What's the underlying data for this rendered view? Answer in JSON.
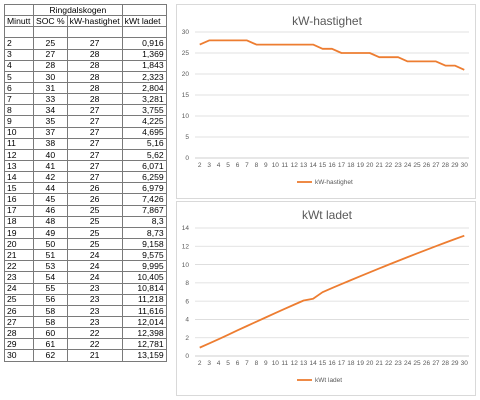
{
  "table": {
    "title": "Ringdalskogen",
    "headers": [
      "Minutt",
      "SOC %",
      "kW-hastighet",
      "kWt ladet"
    ],
    "rows": [
      [
        "2",
        "25",
        "27",
        "0,916"
      ],
      [
        "3",
        "27",
        "28",
        "1,369"
      ],
      [
        "4",
        "28",
        "28",
        "1,843"
      ],
      [
        "5",
        "30",
        "28",
        "2,323"
      ],
      [
        "6",
        "31",
        "28",
        "2,804"
      ],
      [
        "7",
        "33",
        "28",
        "3,281"
      ],
      [
        "8",
        "34",
        "27",
        "3,755"
      ],
      [
        "9",
        "35",
        "27",
        "4,225"
      ],
      [
        "10",
        "37",
        "27",
        "4,695"
      ],
      [
        "11",
        "38",
        "27",
        "5,16"
      ],
      [
        "12",
        "40",
        "27",
        "5,62"
      ],
      [
        "13",
        "41",
        "27",
        "6,071"
      ],
      [
        "14",
        "42",
        "27",
        "6,259"
      ],
      [
        "15",
        "44",
        "26",
        "6,979"
      ],
      [
        "16",
        "45",
        "26",
        "7,426"
      ],
      [
        "17",
        "46",
        "25",
        "7,867"
      ],
      [
        "18",
        "48",
        "25",
        "8,3"
      ],
      [
        "19",
        "49",
        "25",
        "8,73"
      ],
      [
        "20",
        "50",
        "25",
        "9,158"
      ],
      [
        "21",
        "51",
        "24",
        "9,575"
      ],
      [
        "22",
        "53",
        "24",
        "9,995"
      ],
      [
        "23",
        "54",
        "24",
        "10,405"
      ],
      [
        "24",
        "55",
        "23",
        "10,814"
      ],
      [
        "25",
        "56",
        "23",
        "11,218"
      ],
      [
        "26",
        "58",
        "23",
        "11,616"
      ],
      [
        "27",
        "58",
        "23",
        "12,014"
      ],
      [
        "28",
        "60",
        "22",
        "12,398"
      ],
      [
        "29",
        "61",
        "22",
        "12,781"
      ],
      [
        "30",
        "62",
        "21",
        "13,159"
      ]
    ]
  },
  "chart_data": [
    {
      "type": "line",
      "title": "kW-hastighet",
      "x": [
        2,
        3,
        4,
        5,
        6,
        7,
        8,
        9,
        10,
        11,
        12,
        13,
        14,
        15,
        16,
        17,
        18,
        19,
        20,
        21,
        22,
        23,
        24,
        25,
        26,
        27,
        28,
        29,
        30
      ],
      "series": [
        {
          "name": "kW-hastighet",
          "color": "#ed7d31",
          "values": [
            27,
            28,
            28,
            28,
            28,
            28,
            27,
            27,
            27,
            27,
            27,
            27,
            27,
            26,
            26,
            25,
            25,
            25,
            25,
            24,
            24,
            24,
            23,
            23,
            23,
            23,
            22,
            22,
            21
          ]
        }
      ],
      "ylim": [
        0,
        30
      ],
      "yticks": [
        0,
        5,
        10,
        15,
        20,
        25,
        30
      ],
      "grid": true,
      "legend": "bottom"
    },
    {
      "type": "line",
      "title": "kWt ladet",
      "x": [
        2,
        3,
        4,
        5,
        6,
        7,
        8,
        9,
        10,
        11,
        12,
        13,
        14,
        15,
        16,
        17,
        18,
        19,
        20,
        21,
        22,
        23,
        24,
        25,
        26,
        27,
        28,
        29,
        30
      ],
      "series": [
        {
          "name": "kWt ladet",
          "color": "#ed7d31",
          "values": [
            0.916,
            1.369,
            1.843,
            2.323,
            2.804,
            3.281,
            3.755,
            4.225,
            4.695,
            5.16,
            5.62,
            6.071,
            6.259,
            6.979,
            7.426,
            7.867,
            8.3,
            8.73,
            9.158,
            9.575,
            9.995,
            10.405,
            10.814,
            11.218,
            11.616,
            12.014,
            12.398,
            12.781,
            13.159
          ]
        }
      ],
      "ylim": [
        0,
        14
      ],
      "yticks": [
        0,
        2,
        4,
        6,
        8,
        10,
        12,
        14
      ],
      "grid": true,
      "legend": "bottom"
    }
  ]
}
